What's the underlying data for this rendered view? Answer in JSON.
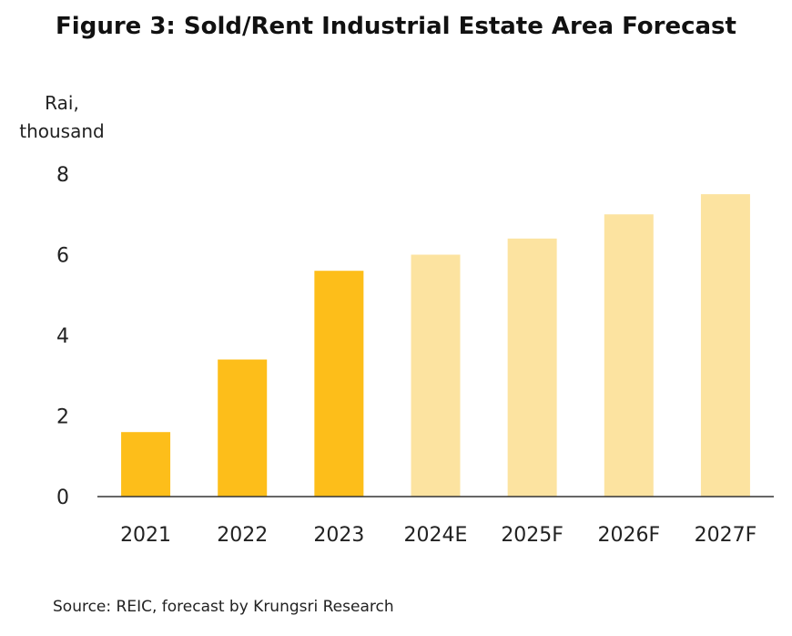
{
  "title": "Figure 3: Sold/Rent Industrial Estate Area Forecast",
  "source": "Source: REIC, forecast by Krungsri Research",
  "chart_data": {
    "type": "bar",
    "title": "Figure 3: Sold/Rent Industrial Estate Area Forecast",
    "xlabel": "",
    "ylabel": "Rai, thousand",
    "categories": [
      "2021",
      "2022",
      "2023",
      "2024E",
      "2025F",
      "2026F",
      "2027F"
    ],
    "values": [
      1.6,
      3.4,
      5.6,
      6.0,
      6.4,
      7.0,
      7.5
    ],
    "ylim": [
      0,
      8
    ],
    "yticks": [
      "0",
      "2",
      "4",
      "6",
      "8"
    ],
    "grid": false,
    "colors": {
      "actual": "#FDBE1A",
      "forecast": "#FCE3A0",
      "axis": "#333333"
    },
    "bar_kinds": [
      "actual",
      "actual",
      "actual",
      "forecast",
      "forecast",
      "forecast",
      "forecast"
    ]
  }
}
